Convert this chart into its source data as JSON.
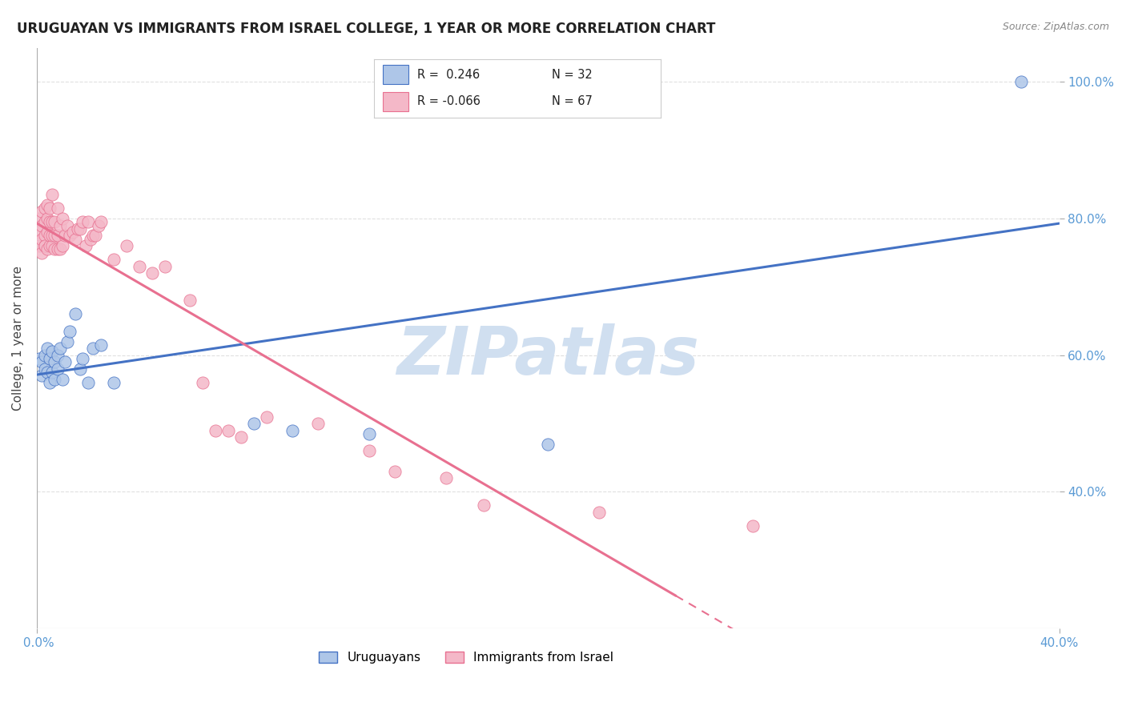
{
  "title": "URUGUAYAN VS IMMIGRANTS FROM ISRAEL COLLEGE, 1 YEAR OR MORE CORRELATION CHART",
  "source_text": "Source: ZipAtlas.com",
  "ylabel": "College, 1 year or more",
  "watermark": "ZIPatlas",
  "legend_blue_label": "Uruguayans",
  "legend_pink_label": "Immigrants from Israel",
  "R_blue": 0.246,
  "N_blue": 32,
  "R_pink": -0.066,
  "N_pink": 67,
  "blue_scatter_x": [
    0.001,
    0.002,
    0.002,
    0.003,
    0.003,
    0.004,
    0.004,
    0.005,
    0.005,
    0.006,
    0.006,
    0.007,
    0.007,
    0.008,
    0.008,
    0.009,
    0.01,
    0.011,
    0.012,
    0.013,
    0.015,
    0.017,
    0.018,
    0.02,
    0.022,
    0.025,
    0.03,
    0.085,
    0.1,
    0.13,
    0.2,
    0.385
  ],
  "blue_scatter_y": [
    0.595,
    0.57,
    0.59,
    0.58,
    0.6,
    0.61,
    0.575,
    0.595,
    0.56,
    0.605,
    0.575,
    0.59,
    0.565,
    0.6,
    0.58,
    0.61,
    0.565,
    0.59,
    0.62,
    0.635,
    0.66,
    0.58,
    0.595,
    0.56,
    0.61,
    0.615,
    0.56,
    0.5,
    0.49,
    0.485,
    0.47,
    1.0
  ],
  "pink_scatter_x": [
    0.001,
    0.001,
    0.001,
    0.002,
    0.002,
    0.002,
    0.002,
    0.003,
    0.003,
    0.003,
    0.003,
    0.003,
    0.004,
    0.004,
    0.004,
    0.004,
    0.005,
    0.005,
    0.005,
    0.005,
    0.006,
    0.006,
    0.006,
    0.006,
    0.007,
    0.007,
    0.007,
    0.008,
    0.008,
    0.008,
    0.009,
    0.009,
    0.01,
    0.01,
    0.011,
    0.012,
    0.013,
    0.014,
    0.015,
    0.016,
    0.017,
    0.018,
    0.019,
    0.02,
    0.021,
    0.022,
    0.023,
    0.024,
    0.025,
    0.03,
    0.035,
    0.04,
    0.045,
    0.05,
    0.06,
    0.065,
    0.07,
    0.075,
    0.08,
    0.09,
    0.11,
    0.13,
    0.14,
    0.16,
    0.175,
    0.22,
    0.28
  ],
  "pink_scatter_y": [
    0.76,
    0.78,
    0.8,
    0.75,
    0.77,
    0.79,
    0.81,
    0.76,
    0.775,
    0.795,
    0.815,
    0.76,
    0.755,
    0.78,
    0.8,
    0.82,
    0.76,
    0.775,
    0.795,
    0.815,
    0.76,
    0.775,
    0.795,
    0.835,
    0.755,
    0.775,
    0.795,
    0.755,
    0.775,
    0.815,
    0.755,
    0.79,
    0.76,
    0.8,
    0.775,
    0.79,
    0.775,
    0.78,
    0.77,
    0.785,
    0.785,
    0.795,
    0.76,
    0.795,
    0.77,
    0.775,
    0.775,
    0.79,
    0.795,
    0.74,
    0.76,
    0.73,
    0.72,
    0.73,
    0.68,
    0.56,
    0.49,
    0.49,
    0.48,
    0.51,
    0.5,
    0.46,
    0.43,
    0.42,
    0.38,
    0.37,
    0.35
  ],
  "blue_color": "#aec6e8",
  "blue_line_color": "#4472c4",
  "pink_color": "#f4b8c8",
  "pink_line_color": "#e87090",
  "background_color": "#ffffff",
  "grid_color": "#e0e0e0",
  "title_color": "#222222",
  "axis_color": "#5b9bd5",
  "watermark_color": "#d0dff0",
  "xlim": [
    0.0,
    0.4
  ],
  "ylim": [
    0.2,
    1.05
  ],
  "yticks": [
    0.4,
    0.6,
    0.8,
    1.0
  ],
  "figsize": [
    14.06,
    8.92
  ],
  "dpi": 100
}
